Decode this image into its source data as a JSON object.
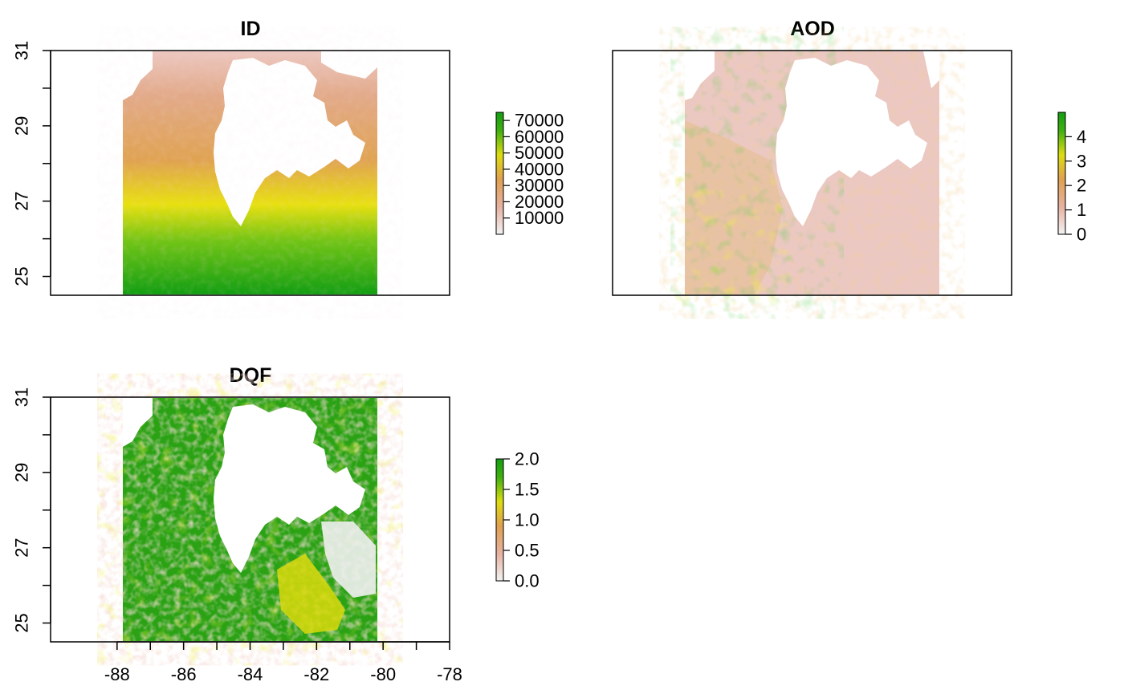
{
  "chart_data": [
    {
      "type": "heatmap",
      "title": "ID",
      "xlim": [
        -90,
        -78
      ],
      "ylim": [
        24.5,
        31
      ],
      "raster_extent": {
        "x": [
          -87.8,
          -80.0
        ],
        "y": [
          24.5,
          31.0
        ]
      },
      "y_ticks": [
        "25",
        "27",
        "29",
        "31"
      ],
      "y_tick_values": [
        25,
        27,
        29,
        31
      ],
      "x_axis_shown": false,
      "palette": [
        "#f2f2f2",
        "#e6b2a2",
        "#e0a050",
        "#dddd10",
        "#3fb010",
        "#139e13"
      ],
      "value_range": [
        0,
        75000
      ],
      "legend": {
        "range": [
          0,
          75000
        ],
        "labels": [
          "70000",
          "60000",
          "50000",
          "40000",
          "30000",
          "20000",
          "10000"
        ],
        "values": [
          70000,
          60000,
          50000,
          40000,
          30000,
          20000,
          10000
        ]
      }
    },
    {
      "type": "heatmap",
      "title": "AOD",
      "xlim": [
        -90,
        -78
      ],
      "ylim": [
        24.5,
        31
      ],
      "raster_extent": {
        "x": [
          -87.8,
          -80.0
        ],
        "y": [
          24.5,
          31.0
        ]
      },
      "y_ticks": [],
      "x_axis_shown": false,
      "palette": [
        "#f2f2f2",
        "#e6b2a2",
        "#e0a050",
        "#dddd10",
        "#3fb010",
        "#139e13"
      ],
      "value_range": [
        0,
        5
      ],
      "legend": {
        "range": [
          0,
          5
        ],
        "labels": [
          "4",
          "3",
          "2",
          "1",
          "0"
        ],
        "values": [
          4,
          3,
          2,
          1,
          0
        ]
      }
    },
    {
      "type": "heatmap",
      "title": "DQF",
      "xlim": [
        -90,
        -78
      ],
      "ylim": [
        24.5,
        31
      ],
      "raster_extent": {
        "x": [
          -87.8,
          -80.0
        ],
        "y": [
          24.5,
          31.0
        ]
      },
      "y_ticks": [
        "25",
        "27",
        "29",
        "31"
      ],
      "y_tick_values": [
        25,
        27,
        29,
        31
      ],
      "x_axis_shown": true,
      "x_ticks": [
        "-88",
        "-86",
        "-84",
        "-82",
        "-80",
        "-78"
      ],
      "x_tick_values": [
        -88,
        -86,
        -84,
        -82,
        -80,
        -78
      ],
      "palette": [
        "#f2f2f2",
        "#e6b2a2",
        "#e0a050",
        "#dddd10",
        "#3fb010",
        "#139e13"
      ],
      "value_range": [
        0,
        2
      ],
      "legend": {
        "range": [
          0,
          2
        ],
        "labels": [
          "2.0",
          "1.5",
          "1.0",
          "0.5",
          "0.0"
        ],
        "values": [
          2.0,
          1.5,
          1.0,
          0.5,
          0.0
        ]
      }
    }
  ]
}
